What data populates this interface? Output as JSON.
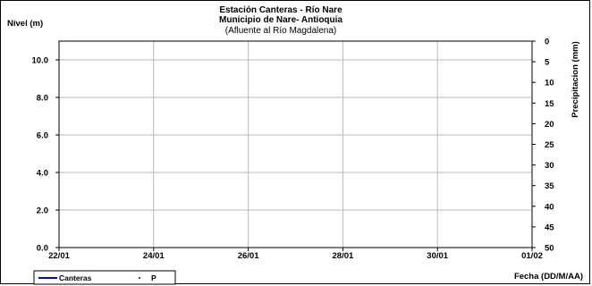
{
  "chart_data": {
    "type": "line",
    "title": [
      "Estación Canteras - Río Nare",
      "Municipio de Nare- Antioquia"
    ],
    "subtitle": "(Afluente al Río Magdalena)",
    "ylabel_left": "Nivel (m)",
    "ylabel_right": "Precipitacion (mm)",
    "xlabel": "Fecha (DD/M/AA)",
    "x_ticks": [
      "22/01",
      "24/01",
      "26/01",
      "28/01",
      "30/01",
      "01/02"
    ],
    "y_left": {
      "lim": [
        0,
        11
      ],
      "ticks": [
        "0.0",
        "2.0",
        "4.0",
        "6.0",
        "8.0",
        "10.0"
      ]
    },
    "y_right": {
      "lim": [
        0,
        50
      ],
      "inverted": true,
      "ticks": [
        "0",
        "5",
        "10",
        "15",
        "20",
        "25",
        "30",
        "35",
        "40",
        "45",
        "50"
      ]
    },
    "grid": true,
    "legend_position": "bottom-left",
    "series": [
      {
        "name": "Canteras",
        "color": "#0000cc",
        "type": "line",
        "values": []
      },
      {
        "name": "P",
        "color": "#008000",
        "type": "scatter",
        "values": []
      }
    ]
  }
}
